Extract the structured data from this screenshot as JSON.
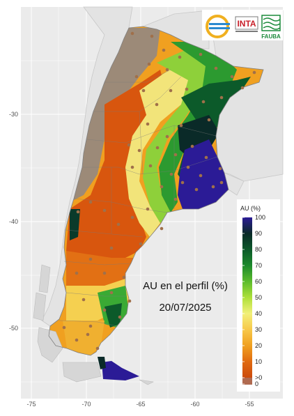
{
  "map": {
    "title_line1": "AU en el perfil (%)",
    "title_line2": "20/07/2025",
    "background_color": "#ebebeb",
    "grid_color": "#ffffff",
    "lat_ticks": [
      "-30",
      "-40",
      "-50"
    ],
    "lon_ticks": [
      "-75",
      "-70",
      "-65",
      "-60",
      "-55"
    ],
    "station_color": "#a0704a"
  },
  "legend": {
    "title": "AU (%)",
    "labels": [
      "100",
      "90",
      "80",
      "70",
      "60",
      "50",
      "40",
      "30",
      "20",
      "10",
      ">0",
      "0"
    ],
    "colors": [
      "#2b1b96",
      "#0a2a28",
      "#0c5a2a",
      "#1c8a2c",
      "#5cbc2c",
      "#aee03a",
      "#f2f07a",
      "#f7c84a",
      "#f0a020",
      "#e06a10",
      "#cc4a0c",
      "#b06a50"
    ]
  },
  "logos": {
    "inta_label": "INTA",
    "fauba_label": "FAUBA",
    "inta_color": "#c8202a",
    "ring_colors": [
      "#f0b020",
      "#2a8ad0"
    ],
    "fauba_color": "#1a8a3a"
  }
}
